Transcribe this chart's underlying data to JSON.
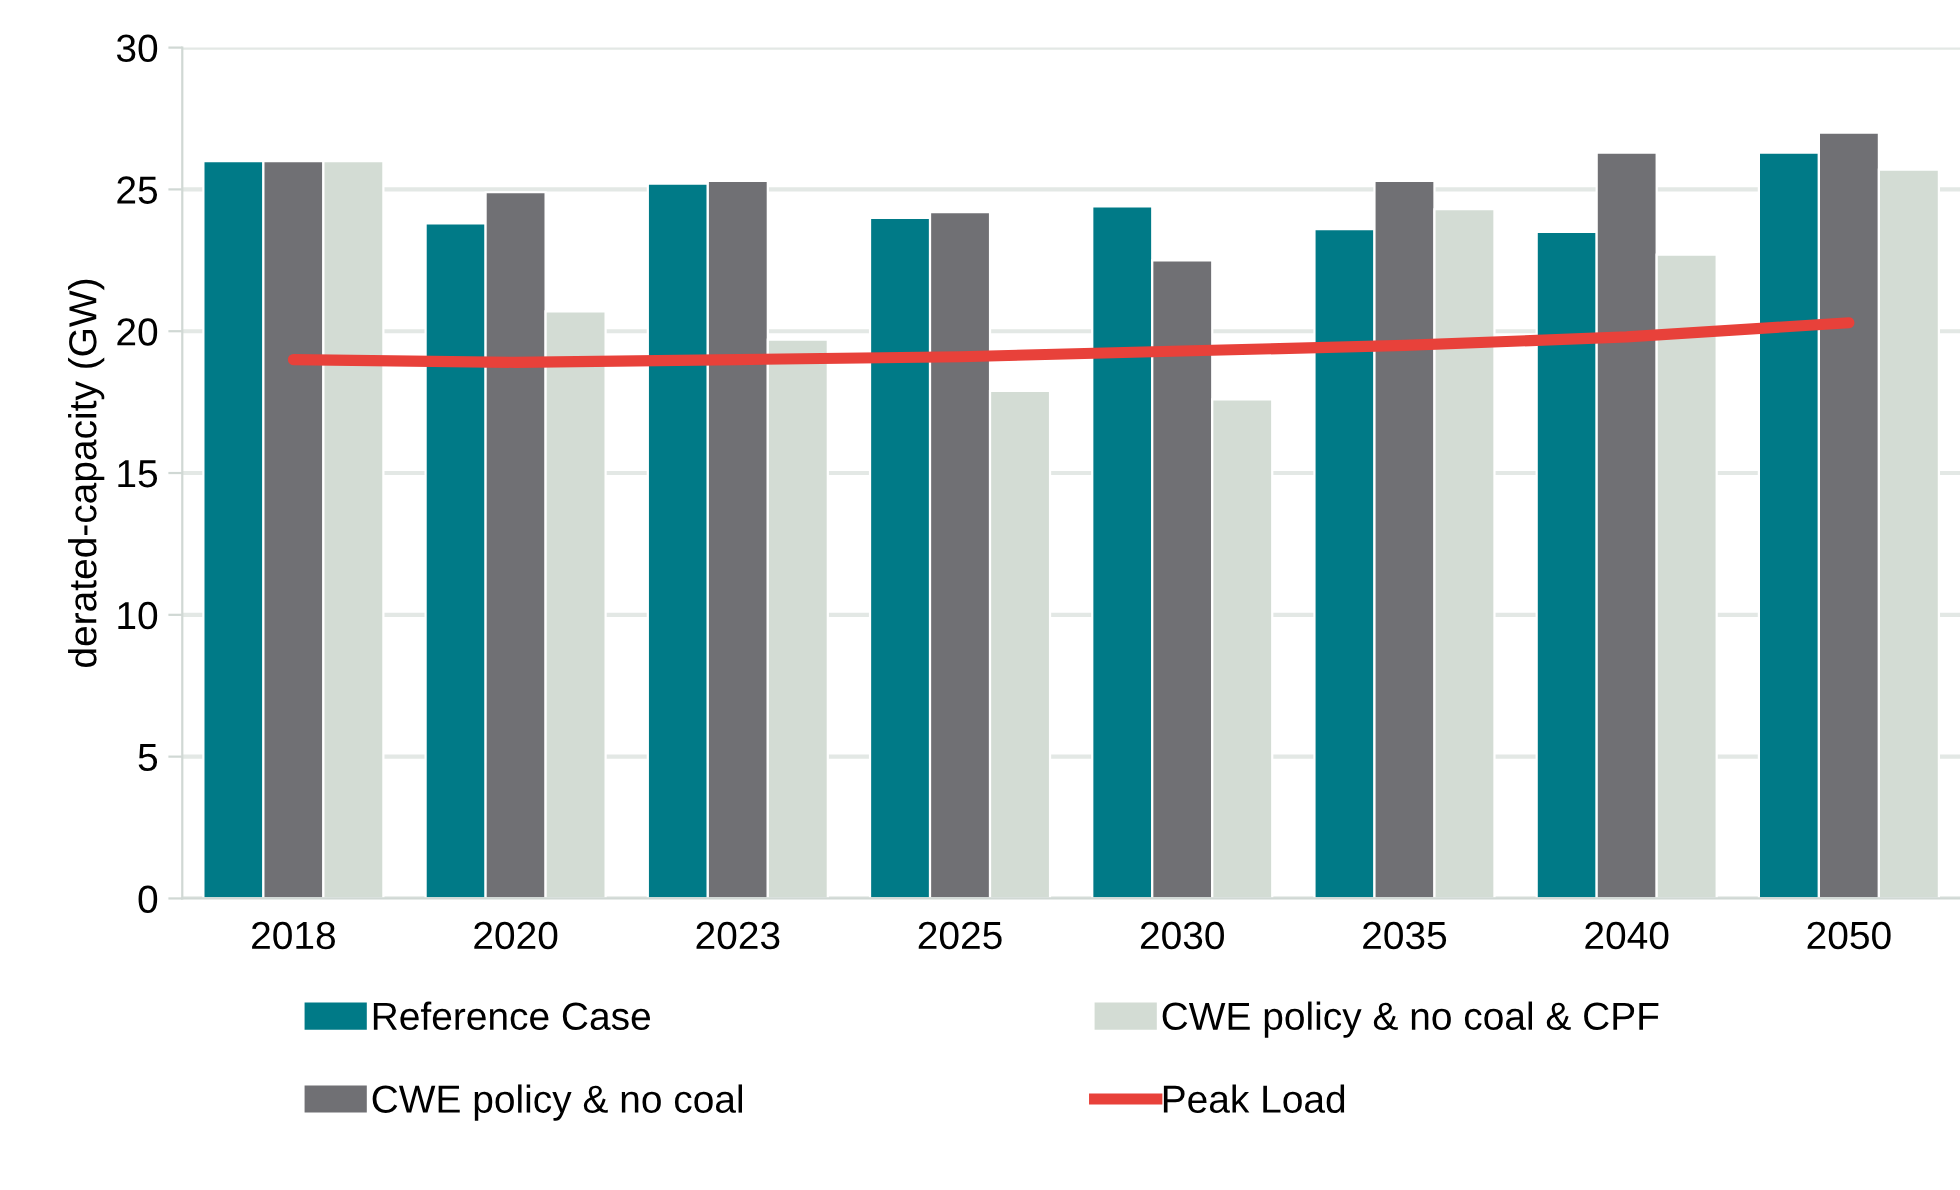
{
  "chart_data": {
    "type": "bar",
    "ylabel": "derated-capacity (GW)",
    "categories": [
      "2018",
      "2020",
      "2023",
      "2025",
      "2030",
      "2035",
      "2040",
      "2050"
    ],
    "series": [
      {
        "name": "Reference Case",
        "color": "#007a87",
        "values": [
          26.0,
          23.8,
          25.2,
          24.0,
          24.4,
          23.6,
          23.5,
          26.3
        ]
      },
      {
        "name": "CWE policy & no coal",
        "color": "#707074",
        "values": [
          26.0,
          24.9,
          25.3,
          24.2,
          22.5,
          25.3,
          26.3,
          27.0
        ]
      },
      {
        "name": "CWE policy & no coal & CPF",
        "color": "#d3dcd4",
        "values": [
          26.0,
          20.7,
          19.7,
          17.9,
          17.6,
          24.3,
          22.7,
          25.7
        ]
      },
      {
        "name": "Peak Load",
        "type": "line",
        "color": "#e8413a",
        "values": [
          19.0,
          18.9,
          19.0,
          19.1,
          19.3,
          19.5,
          19.8,
          20.3
        ]
      }
    ],
    "ylim": [
      0,
      30
    ],
    "yticks": [
      0,
      5,
      10,
      15,
      20,
      25,
      30
    ],
    "grid": "y",
    "legend": "bottom"
  }
}
